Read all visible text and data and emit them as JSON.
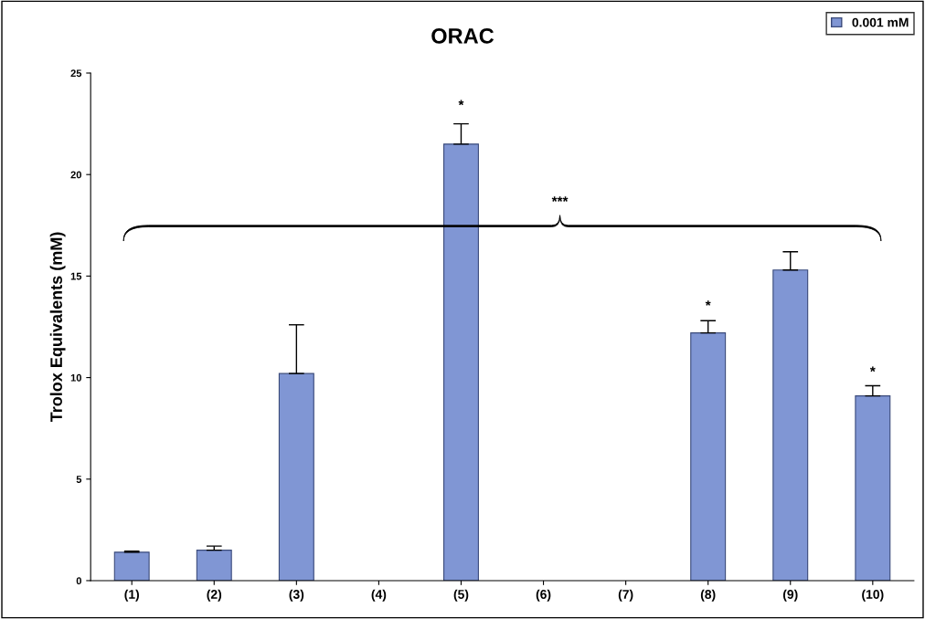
{
  "chart_data": {
    "type": "bar",
    "title": "ORAC",
    "ylabel": "Trolox Equivalents (mM)",
    "categories": [
      "(1)",
      "(2)",
      "(3)",
      "(4)",
      "(5)",
      "(6)",
      "(7)",
      "(8)",
      "(9)",
      "(10)"
    ],
    "series": [
      {
        "name": "0.001 mM",
        "color": "#8096d4",
        "values": [
          1.4,
          1.5,
          10.2,
          null,
          21.5,
          null,
          null,
          12.2,
          15.3,
          9.1
        ],
        "errors": [
          [
            1.4,
            1.45
          ],
          [
            1.5,
            1.7
          ],
          [
            10.2,
            12.6
          ],
          null,
          [
            21.5,
            22.5
          ],
          null,
          null,
          [
            12.2,
            12.8
          ],
          [
            15.3,
            16.2
          ],
          [
            9.1,
            9.6
          ]
        ]
      }
    ],
    "ylim": [
      0,
      25
    ],
    "yticks": [
      0,
      5,
      10,
      15,
      20,
      25
    ],
    "grid": false,
    "legend": "top right",
    "annotations": [
      "*",
      "*",
      "*",
      "***"
    ]
  }
}
